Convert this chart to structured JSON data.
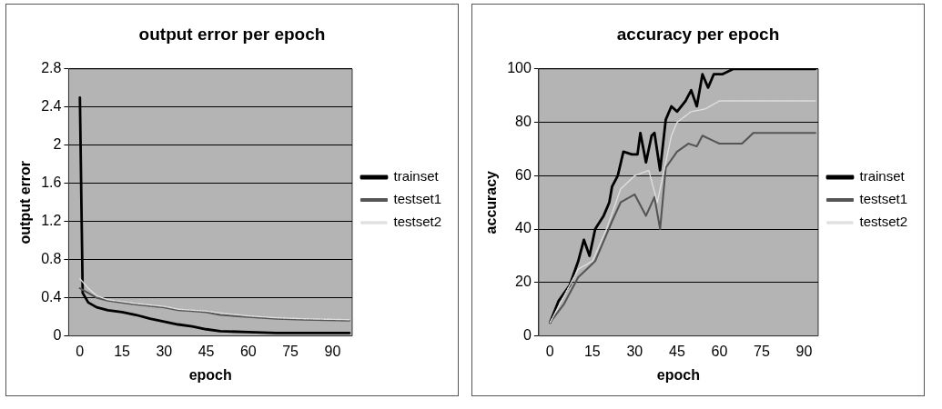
{
  "chart_data": [
    {
      "type": "line",
      "title": "output error per epoch",
      "xlabel": "epoch",
      "ylabel": "output error",
      "xlim": [
        -4,
        97
      ],
      "xticks": [
        0,
        15,
        30,
        45,
        60,
        75,
        90
      ],
      "ylim": [
        0,
        2.8
      ],
      "yticks": [
        0,
        0.4,
        0.8,
        1.2,
        1.6,
        2,
        2.4,
        2.8
      ],
      "grid": "y",
      "legend": "right",
      "series": [
        {
          "name": "trainset",
          "color": "#000000",
          "x": [
            0,
            1,
            3,
            6,
            10,
            15,
            20,
            25,
            30,
            35,
            40,
            45,
            50,
            60,
            70,
            80,
            96
          ],
          "values": [
            2.5,
            0.45,
            0.35,
            0.3,
            0.27,
            0.25,
            0.22,
            0.18,
            0.15,
            0.12,
            0.1,
            0.07,
            0.05,
            0.04,
            0.03,
            0.03,
            0.03
          ]
        },
        {
          "name": "testset1",
          "color": "#555555",
          "x": [
            0,
            3,
            6,
            10,
            15,
            20,
            30,
            35,
            40,
            45,
            50,
            60,
            70,
            80,
            96
          ],
          "values": [
            0.5,
            0.45,
            0.4,
            0.37,
            0.35,
            0.33,
            0.3,
            0.27,
            0.26,
            0.25,
            0.22,
            0.2,
            0.18,
            0.17,
            0.16
          ]
        },
        {
          "name": "testset2",
          "color": "#e0e0e0",
          "line_style": "dotted",
          "x": [
            0,
            3,
            6,
            10,
            15,
            20,
            30,
            35,
            40,
            45,
            50,
            60,
            70,
            80,
            96
          ],
          "values": [
            0.6,
            0.5,
            0.42,
            0.38,
            0.36,
            0.34,
            0.31,
            0.28,
            0.27,
            0.26,
            0.24,
            0.21,
            0.19,
            0.18,
            0.17
          ]
        }
      ]
    },
    {
      "type": "line",
      "title": "accuracy per epoch",
      "xlabel": "epoch",
      "ylabel": "accuracy",
      "xlim": [
        -4,
        95
      ],
      "xticks": [
        0,
        15,
        30,
        45,
        60,
        75,
        90
      ],
      "ylim": [
        0,
        100
      ],
      "yticks": [
        0,
        20,
        40,
        60,
        80,
        100
      ],
      "grid": "y",
      "legend": "right",
      "series": [
        {
          "name": "trainset",
          "color": "#000000",
          "x": [
            0,
            3,
            7,
            10,
            12,
            14,
            16,
            19,
            21,
            22,
            24,
            26,
            29,
            31,
            32,
            34,
            36,
            37,
            39,
            41,
            43,
            45,
            48,
            50,
            52,
            54,
            56,
            58,
            61,
            65,
            94
          ],
          "values": [
            5,
            13,
            19,
            28,
            36,
            30,
            40,
            45,
            50,
            56,
            60,
            69,
            68,
            68,
            76,
            65,
            75,
            76,
            62,
            81,
            86,
            84,
            88,
            92,
            86,
            98,
            93,
            98,
            98,
            100,
            100
          ]
        },
        {
          "name": "testset1",
          "color": "#555555",
          "x": [
            0,
            5,
            10,
            13,
            16,
            22,
            25,
            30,
            34,
            37,
            39,
            41,
            45,
            49,
            52,
            54,
            58,
            60,
            68,
            70,
            72,
            94
          ],
          "values": [
            5,
            12,
            22,
            25,
            28,
            43,
            50,
            53,
            45,
            52,
            40,
            63,
            69,
            72,
            71,
            75,
            73,
            72,
            72,
            74,
            76,
            76
          ]
        },
        {
          "name": "testset2",
          "color": "#e0e0e0",
          "line_style": "dotted",
          "x": [
            0,
            10,
            15,
            20,
            25,
            30,
            35,
            38,
            40,
            43,
            45,
            50,
            55,
            60,
            94
          ],
          "values": [
            5,
            25,
            28,
            40,
            55,
            60,
            62,
            50,
            60,
            75,
            80,
            84,
            85,
            88,
            88
          ]
        }
      ]
    }
  ]
}
